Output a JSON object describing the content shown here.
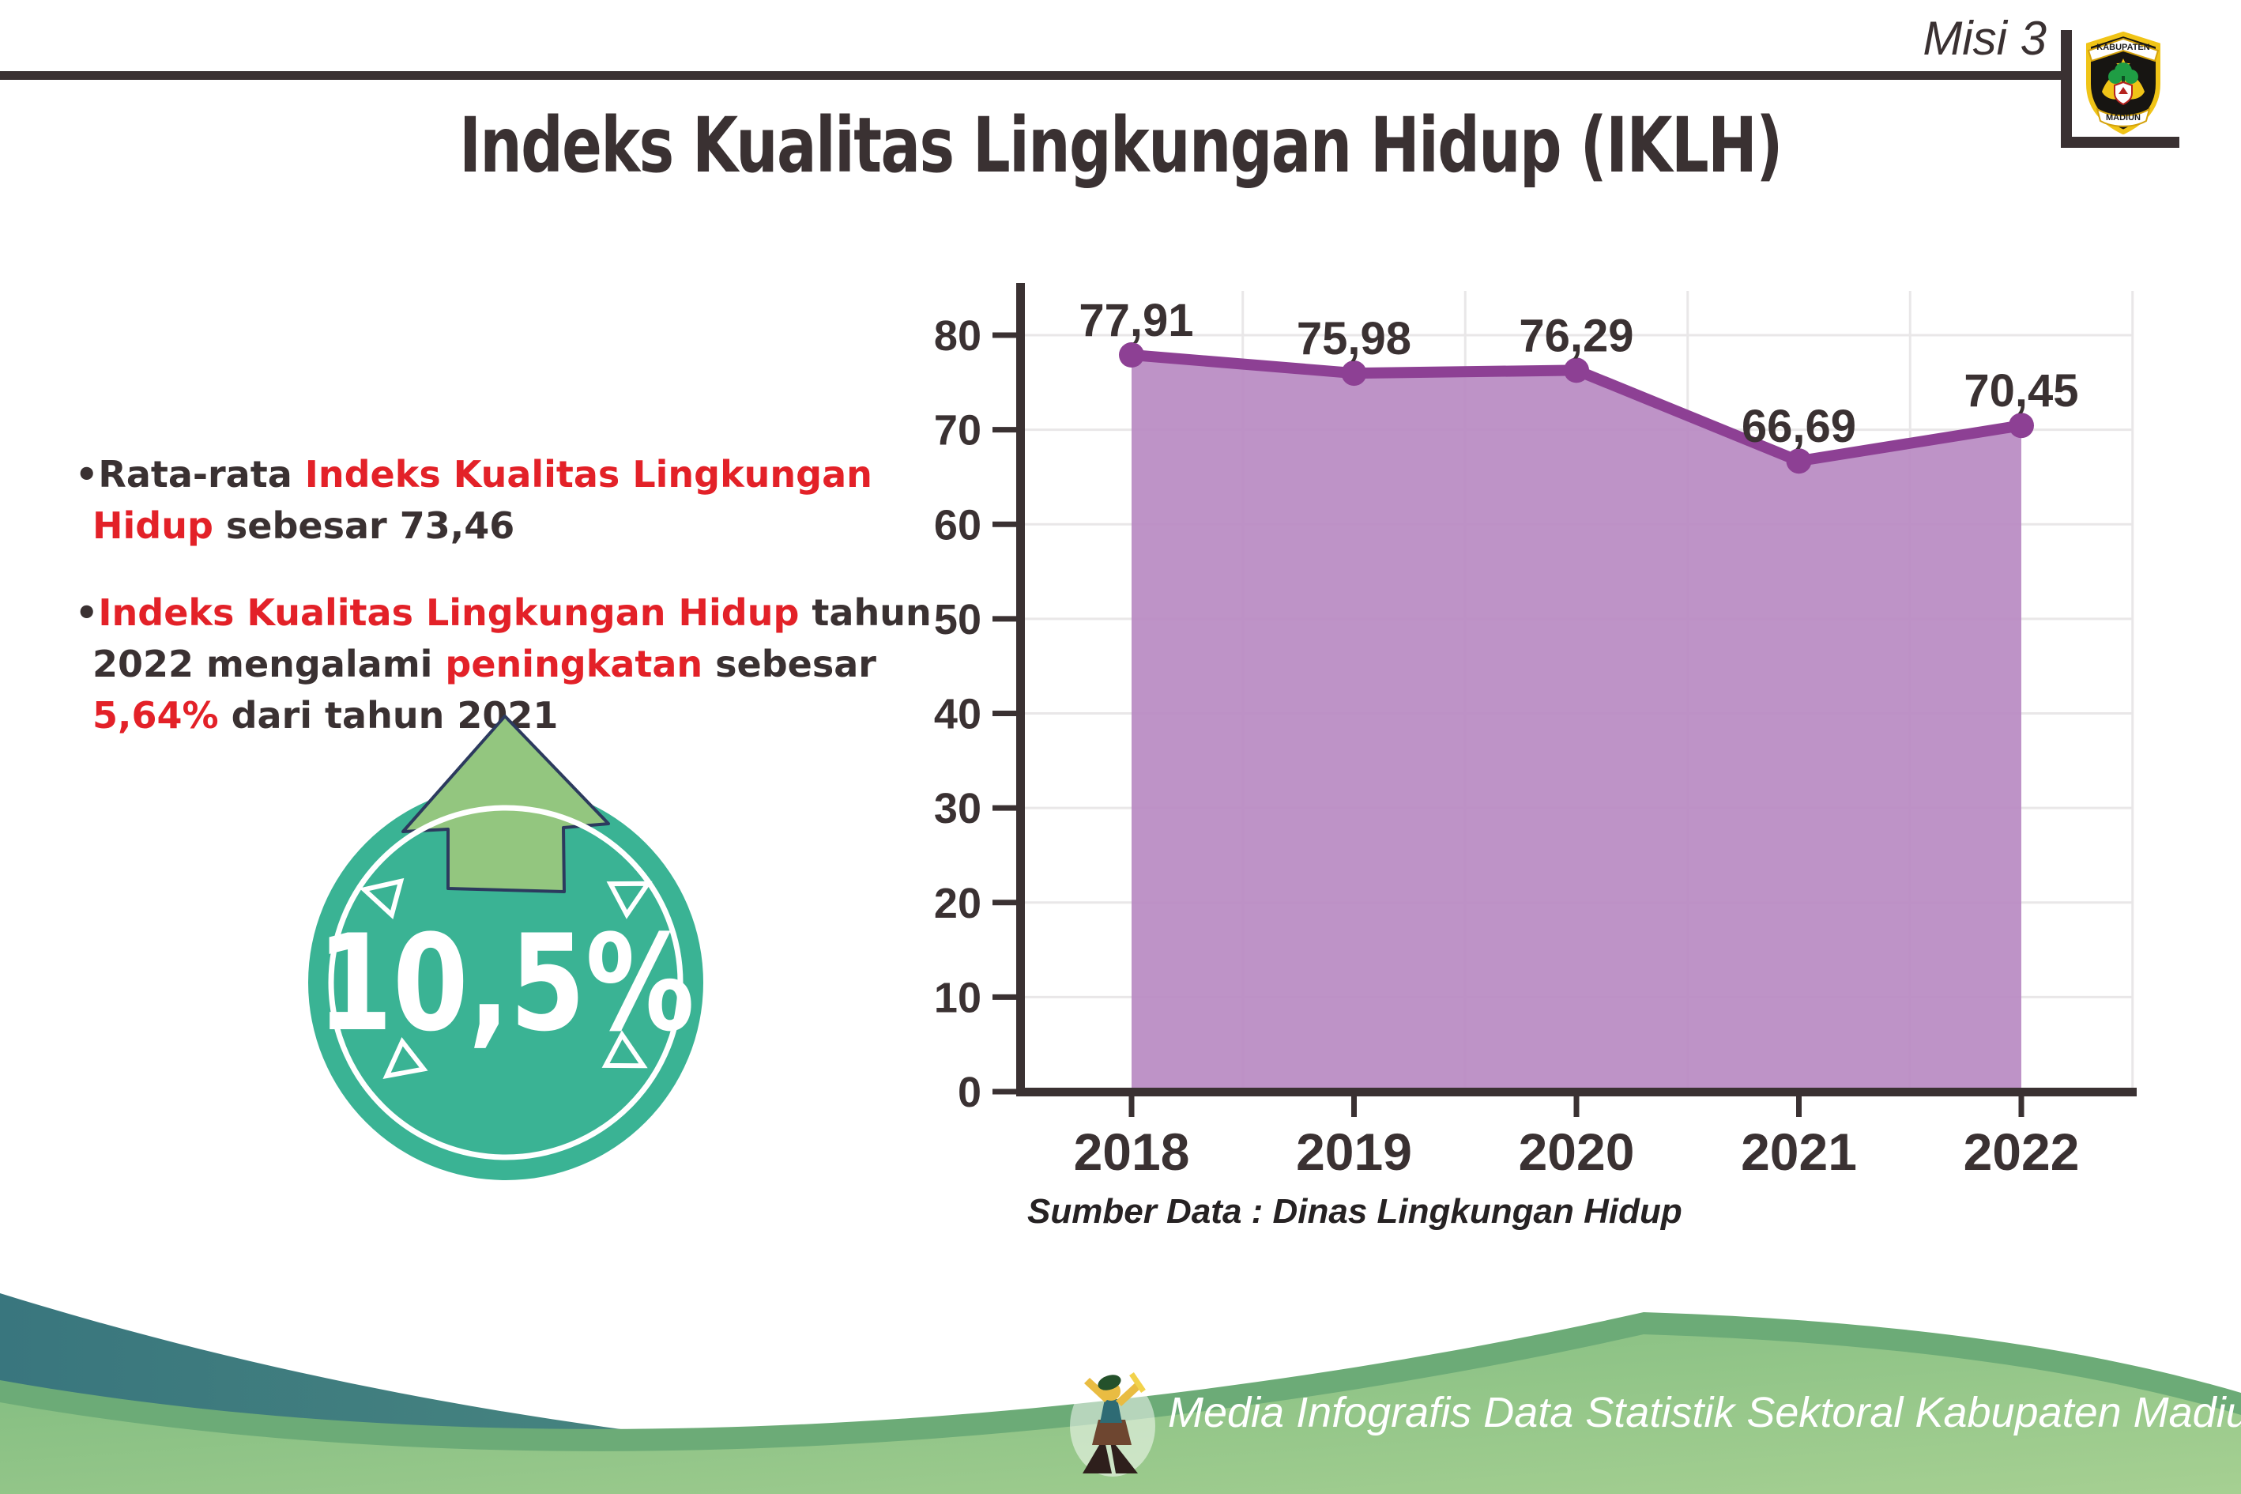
{
  "header": {
    "mission_label": "Misi 3",
    "logo": {
      "top_text": "KABUPATEN",
      "bottom_text": "MADIUN"
    }
  },
  "title": "Indeks Kualitas Lingkungan Hidup (IKLH)",
  "bullets": [
    {
      "segments": [
        {
          "text": "Rata-rata ",
          "color": "dark"
        },
        {
          "text": "Indeks Kualitas Lingkungan Hidup",
          "color": "red"
        },
        {
          "text": " sebesar 73,46",
          "color": "dark"
        }
      ]
    },
    {
      "segments": [
        {
          "text": "Indeks Kualitas Lingkungan Hidup",
          "color": "red"
        },
        {
          "text": " tahun 2022 mengalami ",
          "color": "dark"
        },
        {
          "text": "peningkatan",
          "color": "red"
        },
        {
          "text": " sebesar ",
          "color": "dark"
        },
        {
          "text": "5,64%",
          "color": "red"
        },
        {
          "text": " dari tahun 2021",
          "color": "dark"
        }
      ]
    }
  ],
  "badge": {
    "value": "10,5%",
    "direction": "up-arrow"
  },
  "chart_data": {
    "type": "area",
    "title": "",
    "categories": [
      "2018",
      "2019",
      "2020",
      "2021",
      "2022"
    ],
    "series": [
      {
        "name": "IKLH",
        "values": [
          77.91,
          75.98,
          76.29,
          66.69,
          70.45
        ]
      }
    ],
    "data_labels": [
      "77,91",
      "75,98",
      "76,29",
      "66,69",
      "70,45"
    ],
    "xlabel": "",
    "ylabel": "",
    "ylim": [
      0,
      85
    ],
    "yticks": [
      0,
      10,
      20,
      30,
      40,
      50,
      60,
      70,
      80
    ],
    "grid": "horizontal and vertical light gridlines",
    "legend": "none"
  },
  "source_note": "Sumber Data : Dinas Lingkungan Hidup",
  "footer": {
    "credit": "Media Infografis Data Statistik Sektoral Kabupaten Madiun |"
  },
  "colors": {
    "accent_red": "#e32128",
    "text_dark": "#3a3132",
    "badge_teal": "#3ab394",
    "arrow_green": "#93c67f",
    "arrow_outline": "#2c3a5e",
    "chart_line_purple": "#8d4094",
    "chart_fill_purple": "#b98ac2",
    "grid_gray": "#e9e7e8",
    "footer_teal_left": "#39767e",
    "footer_teal_right": "#67a783",
    "footer_green_light": "#8ac485",
    "footer_green_edge": "#6cab77"
  }
}
